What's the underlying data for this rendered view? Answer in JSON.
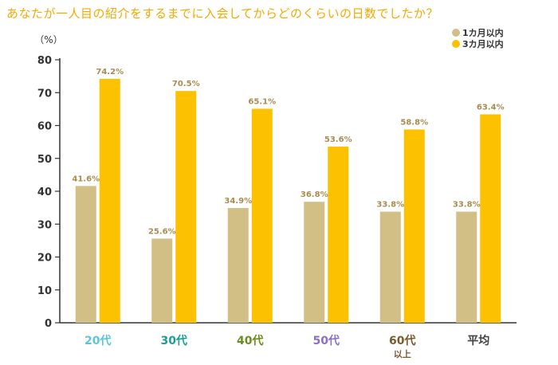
{
  "chart_data": {
    "type": "bar",
    "title": "あなたが一人目の紹介をするまでに入会してからどのくらいの日数でしたか？",
    "unit_label": "（%）",
    "ylim": [
      0,
      80
    ],
    "yticks": [
      0,
      10,
      20,
      30,
      40,
      50,
      60,
      70,
      80
    ],
    "legend_position": "top-right",
    "categories": [
      {
        "label": "20代",
        "sublabel": "",
        "color": "#5bc5d9"
      },
      {
        "label": "30代",
        "sublabel": "",
        "color": "#1a9e96"
      },
      {
        "label": "40代",
        "sublabel": "",
        "color": "#6b8c21"
      },
      {
        "label": "50代",
        "sublabel": "",
        "color": "#8a6fc8"
      },
      {
        "label": "60代",
        "sublabel": "以上",
        "color": "#7a5a2e"
      },
      {
        "label": "平均",
        "sublabel": "",
        "color": "#444444"
      }
    ],
    "series": [
      {
        "name": "1カ月以内",
        "color": "#d2bf86",
        "label_color": "#a88c50",
        "values": [
          41.6,
          25.6,
          34.9,
          36.8,
          33.8,
          33.8
        ],
        "value_labels": [
          "41.6%",
          "25.6%",
          "34.9%",
          "36.8%",
          "33.8%",
          "33.8%"
        ]
      },
      {
        "name": "3カ月以内",
        "color": "#fcc100",
        "label_color": "#a88c50",
        "values": [
          74.2,
          70.5,
          65.1,
          53.6,
          58.8,
          63.4
        ],
        "value_labels": [
          "74.2%",
          "70.5%",
          "65.1%",
          "53.6%",
          "58.8%",
          "63.4%"
        ]
      }
    ],
    "grid": false
  }
}
